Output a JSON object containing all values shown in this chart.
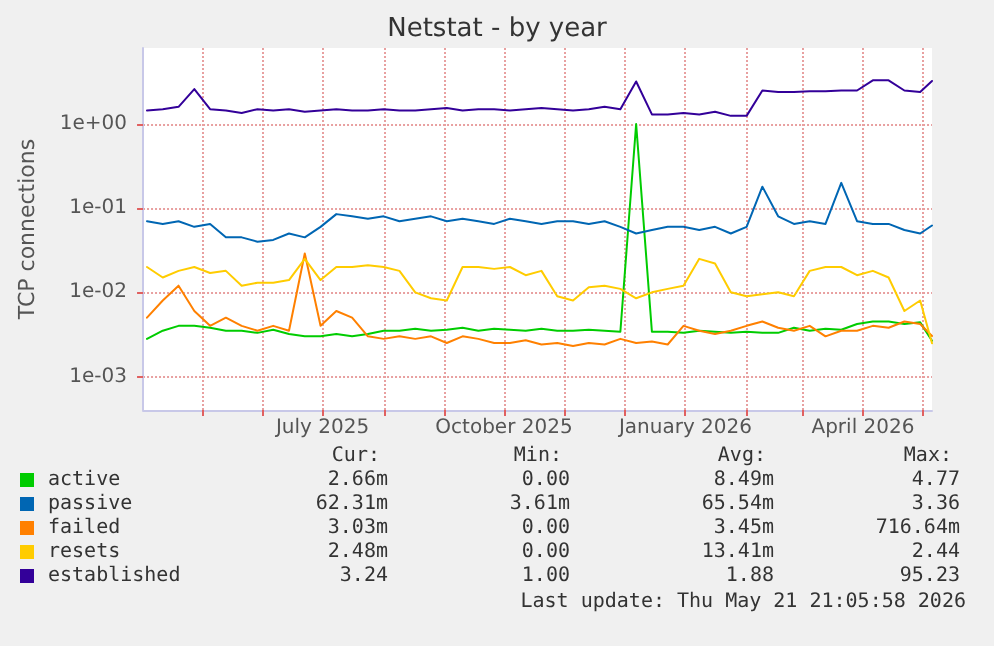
{
  "chart_data": {
    "type": "line",
    "title": "Netstat - by year",
    "ylabel": "TCP connections",
    "log": "y",
    "grid": true,
    "legend": "bottom left",
    "marker": "none",
    "line_style": "solid",
    "x": [
      "2025-04-03",
      "2025-04-11",
      "2025-04-19",
      "2025-04-27",
      "2025-05-05",
      "2025-05-13",
      "2025-05-21",
      "2025-05-29",
      "2025-06-06",
      "2025-06-14",
      "2025-06-22",
      "2025-06-30",
      "2025-07-08",
      "2025-07-16",
      "2025-07-24",
      "2025-08-01",
      "2025-08-09",
      "2025-08-17",
      "2025-08-25",
      "2025-09-02",
      "2025-09-10",
      "2025-09-18",
      "2025-09-26",
      "2025-10-04",
      "2025-10-12",
      "2025-10-20",
      "2025-10-28",
      "2025-11-05",
      "2025-11-13",
      "2025-11-21",
      "2025-11-29",
      "2025-12-07",
      "2025-12-15",
      "2025-12-23",
      "2025-12-31",
      "2026-01-08",
      "2026-01-16",
      "2026-01-24",
      "2026-02-01",
      "2026-02-09",
      "2026-02-17",
      "2026-02-25",
      "2026-03-05",
      "2026-03-13",
      "2026-03-21",
      "2026-03-29",
      "2026-04-06",
      "2026-04-14",
      "2026-04-22",
      "2026-04-30",
      "2026-05-06"
    ],
    "xlim": [
      "2025-04-01",
      "2026-05-06"
    ],
    "xticks": [
      {
        "value": "2025-05",
        "label": null
      },
      {
        "value": "2025-06",
        "label": null
      },
      {
        "value": "2025-07",
        "label": "July 2025"
      },
      {
        "value": "2025-08",
        "label": null
      },
      {
        "value": "2025-09",
        "label": null
      },
      {
        "value": "2025-10",
        "label": "October 2025"
      },
      {
        "value": "2025-11",
        "label": null
      },
      {
        "value": "2025-12",
        "label": null
      },
      {
        "value": "2026-01",
        "label": "January 2026"
      },
      {
        "value": "2026-02",
        "label": null
      },
      {
        "value": "2026-03",
        "label": null
      },
      {
        "value": "2026-04",
        "label": "April 2026"
      },
      {
        "value": "2026-05",
        "label": null
      }
    ],
    "ylim": [
      0.0004,
      8
    ],
    "yticks": [
      {
        "value": 0.001,
        "label": "1e-03"
      },
      {
        "value": 0.01,
        "label": "1e-02"
      },
      {
        "value": 0.1,
        "label": "1e-01"
      },
      {
        "value": 1,
        "label": "1e+00"
      }
    ],
    "series": [
      {
        "name": "active",
        "color": "#00cc00",
        "values": [
          0.0028,
          0.0035,
          0.004,
          0.004,
          0.0038,
          0.0035,
          0.0035,
          0.0033,
          0.0036,
          0.0032,
          0.003,
          0.003,
          0.0032,
          0.003,
          0.0032,
          0.0035,
          0.0035,
          0.0037,
          0.0035,
          0.0036,
          0.0038,
          0.0035,
          0.0037,
          0.0036,
          0.0035,
          0.0037,
          0.0035,
          0.0035,
          0.0036,
          0.0035,
          0.0034,
          1.0,
          0.0034,
          0.0034,
          0.0033,
          0.0035,
          0.0034,
          0.0033,
          0.0034,
          0.0033,
          0.0033,
          0.0038,
          0.0035,
          0.0037,
          0.0036,
          0.0042,
          0.0045,
          0.0045,
          0.0042,
          0.0044,
          0.00266
        ]
      },
      {
        "name": "passive",
        "color": "#0066b3",
        "values": [
          0.07,
          0.065,
          0.07,
          0.06,
          0.065,
          0.045,
          0.045,
          0.04,
          0.042,
          0.05,
          0.045,
          0.06,
          0.085,
          0.08,
          0.075,
          0.08,
          0.07,
          0.075,
          0.08,
          0.07,
          0.075,
          0.07,
          0.065,
          0.075,
          0.07,
          0.065,
          0.07,
          0.07,
          0.065,
          0.07,
          0.06,
          0.05,
          0.055,
          0.06,
          0.06,
          0.055,
          0.06,
          0.05,
          0.06,
          0.18,
          0.08,
          0.065,
          0.07,
          0.065,
          0.2,
          0.07,
          0.065,
          0.065,
          0.055,
          0.05,
          0.0623
        ]
      },
      {
        "name": "failed",
        "color": "#ff8000",
        "values": [
          0.005,
          0.008,
          0.012,
          0.006,
          0.004,
          0.005,
          0.004,
          0.0035,
          0.004,
          0.0035,
          0.029,
          0.004,
          0.006,
          0.005,
          0.003,
          0.0028,
          0.003,
          0.0028,
          0.003,
          0.0025,
          0.003,
          0.0028,
          0.0025,
          0.0025,
          0.0027,
          0.0024,
          0.0025,
          0.0023,
          0.0025,
          0.0024,
          0.0028,
          0.0025,
          0.0026,
          0.0024,
          0.004,
          0.0035,
          0.0032,
          0.0035,
          0.004,
          0.0045,
          0.0038,
          0.0035,
          0.004,
          0.003,
          0.0035,
          0.0035,
          0.004,
          0.0038,
          0.0045,
          0.0042,
          0.00303
        ]
      },
      {
        "name": "resets",
        "color": "#ffcc00",
        "values": [
          0.02,
          0.015,
          0.018,
          0.02,
          0.017,
          0.018,
          0.012,
          0.013,
          0.013,
          0.014,
          0.025,
          0.014,
          0.02,
          0.02,
          0.021,
          0.02,
          0.018,
          0.01,
          0.0085,
          0.008,
          0.02,
          0.02,
          0.019,
          0.02,
          0.016,
          0.018,
          0.009,
          0.008,
          0.0115,
          0.012,
          0.011,
          0.0085,
          0.01,
          0.011,
          0.012,
          0.025,
          0.022,
          0.01,
          0.009,
          0.0095,
          0.01,
          0.009,
          0.018,
          0.02,
          0.02,
          0.016,
          0.018,
          0.015,
          0.006,
          0.008,
          0.00248
        ]
      },
      {
        "name": "established",
        "color": "#330099",
        "values": [
          1.45,
          1.5,
          1.6,
          2.6,
          1.5,
          1.45,
          1.35,
          1.5,
          1.45,
          1.5,
          1.4,
          1.45,
          1.5,
          1.45,
          1.45,
          1.5,
          1.45,
          1.45,
          1.5,
          1.55,
          1.45,
          1.5,
          1.5,
          1.45,
          1.5,
          1.55,
          1.5,
          1.45,
          1.5,
          1.6,
          1.5,
          3.2,
          1.3,
          1.3,
          1.35,
          1.3,
          1.4,
          1.25,
          1.25,
          2.5,
          2.4,
          2.4,
          2.45,
          2.45,
          2.5,
          2.5,
          3.3,
          3.3,
          2.5,
          2.4,
          3.24
        ]
      }
    ],
    "annotations": [
      "Cur:",
      "Min:",
      "Avg:",
      "Max:",
      "2.66m",
      "0.00",
      "8.49m",
      "4.77",
      "62.31m",
      "3.61m",
      "65.54m",
      "3.36",
      "3.03m",
      "0.00",
      "3.45m",
      "716.64m",
      "2.48m",
      "0.00",
      "13.41m",
      "2.44",
      "3.24",
      "1.00",
      "1.88",
      "95.23",
      "Last update: Thu May 21 21:05:58 2026"
    ]
  }
}
